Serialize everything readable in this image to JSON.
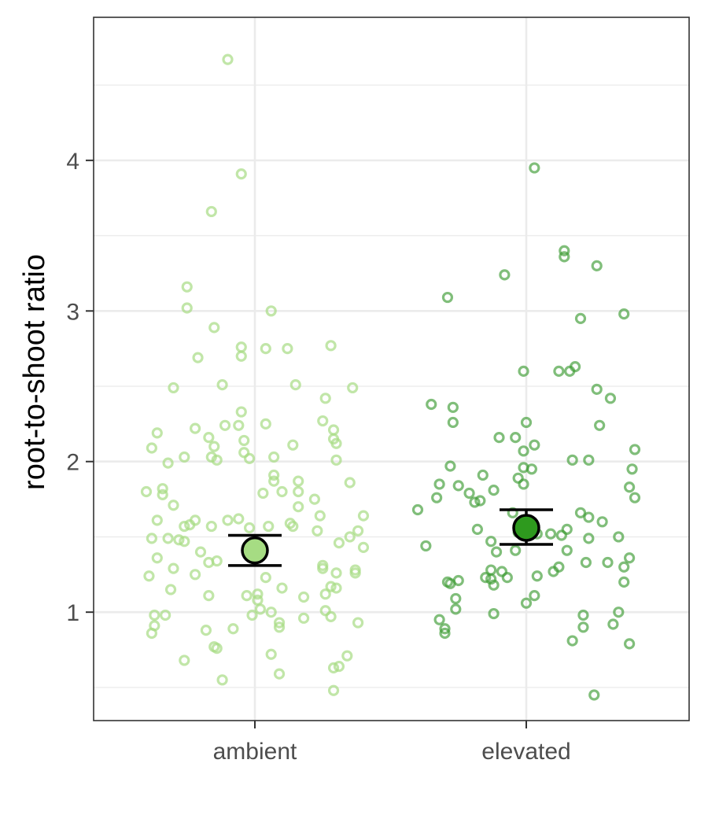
{
  "chart_data": {
    "type": "scatter",
    "title": "",
    "xlabel": "",
    "ylabel": "root-to-shoot ratio",
    "categories": [
      "ambient",
      "elevated"
    ],
    "ylim": [
      0.28,
      4.95
    ],
    "yticks": [
      1,
      2,
      3,
      4
    ],
    "grid": true,
    "legend": "none",
    "colors": {
      "ambient_points": "#a6dc83",
      "ambient_mean": "#a6dc83",
      "elevated_points": "#3c9b32",
      "elevated_mean": "#2e9a1e",
      "errorbar": "#000000",
      "grid": "#ebebeb",
      "panel_border": "#333333"
    },
    "summary": [
      {
        "category": "ambient",
        "mean": 1.41,
        "lower": 1.31,
        "upper": 1.51
      },
      {
        "category": "elevated",
        "mean": 1.56,
        "lower": 1.45,
        "upper": 1.68
      }
    ],
    "series": [
      {
        "category": "ambient",
        "points": [
          [
            -0.1,
            4.67
          ],
          [
            -0.05,
            3.91
          ],
          [
            -0.16,
            3.66
          ],
          [
            -0.25,
            3.02
          ],
          [
            -0.25,
            3.16
          ],
          [
            0.06,
            3.0
          ],
          [
            -0.15,
            2.89
          ],
          [
            -0.05,
            2.76
          ],
          [
            -0.05,
            2.7
          ],
          [
            0.04,
            2.75
          ],
          [
            0.12,
            2.75
          ],
          [
            0.28,
            2.77
          ],
          [
            -0.21,
            2.69
          ],
          [
            -0.3,
            2.49
          ],
          [
            -0.12,
            2.51
          ],
          [
            0.15,
            2.51
          ],
          [
            0.36,
            2.49
          ],
          [
            0.26,
            2.42
          ],
          [
            -0.05,
            2.33
          ],
          [
            -0.22,
            2.22
          ],
          [
            -0.17,
            2.16
          ],
          [
            -0.11,
            2.24
          ],
          [
            -0.06,
            2.24
          ],
          [
            0.04,
            2.25
          ],
          [
            0.25,
            2.27
          ],
          [
            0.29,
            2.21
          ],
          [
            -0.36,
            2.19
          ],
          [
            -0.38,
            2.09
          ],
          [
            -0.15,
            2.1
          ],
          [
            0.14,
            2.11
          ],
          [
            0.29,
            2.15
          ],
          [
            0.3,
            2.12
          ],
          [
            -0.04,
            2.14
          ],
          [
            -0.26,
            2.03
          ],
          [
            -0.32,
            1.99
          ],
          [
            -0.16,
            2.03
          ],
          [
            -0.14,
            2.01
          ],
          [
            -0.04,
            2.06
          ],
          [
            -0.02,
            2.02
          ],
          [
            0.07,
            2.03
          ],
          [
            0.3,
            2.01
          ],
          [
            -0.4,
            1.8
          ],
          [
            -0.34,
            1.82
          ],
          [
            -0.34,
            1.78
          ],
          [
            -0.3,
            1.71
          ],
          [
            0.07,
            1.91
          ],
          [
            0.07,
            1.87
          ],
          [
            0.16,
            1.87
          ],
          [
            0.35,
            1.86
          ],
          [
            0.03,
            1.79
          ],
          [
            0.1,
            1.8
          ],
          [
            0.16,
            1.8
          ],
          [
            0.22,
            1.75
          ],
          [
            0.16,
            1.7
          ],
          [
            0.4,
            1.64
          ],
          [
            0.24,
            1.64
          ],
          [
            -0.36,
            1.61
          ],
          [
            -0.22,
            1.61
          ],
          [
            -0.24,
            1.58
          ],
          [
            -0.26,
            1.57
          ],
          [
            -0.16,
            1.57
          ],
          [
            -0.1,
            1.61
          ],
          [
            -0.06,
            1.62
          ],
          [
            -0.02,
            1.56
          ],
          [
            0.05,
            1.57
          ],
          [
            0.13,
            1.59
          ],
          [
            0.14,
            1.57
          ],
          [
            0.23,
            1.54
          ],
          [
            0.38,
            1.54
          ],
          [
            0.35,
            1.5
          ],
          [
            0.31,
            1.46
          ],
          [
            0.4,
            1.43
          ],
          [
            -0.38,
            1.49
          ],
          [
            -0.32,
            1.49
          ],
          [
            -0.28,
            1.48
          ],
          [
            -0.26,
            1.47
          ],
          [
            -0.36,
            1.36
          ],
          [
            -0.2,
            1.4
          ],
          [
            -0.17,
            1.33
          ],
          [
            -0.14,
            1.34
          ],
          [
            -0.22,
            1.25
          ],
          [
            -0.3,
            1.29
          ],
          [
            -0.39,
            1.24
          ],
          [
            0.25,
            1.31
          ],
          [
            0.25,
            1.29
          ],
          [
            0.3,
            1.26
          ],
          [
            0.37,
            1.26
          ],
          [
            0.37,
            1.28
          ],
          [
            0.04,
            1.23
          ],
          [
            0.1,
            1.16
          ],
          [
            -0.31,
            1.15
          ],
          [
            -0.17,
            1.11
          ],
          [
            -0.03,
            1.11
          ],
          [
            0.01,
            1.12
          ],
          [
            0.01,
            1.08
          ],
          [
            0.02,
            1.02
          ],
          [
            0.06,
            1.0
          ],
          [
            -0.01,
            0.98
          ],
          [
            0.18,
            0.96
          ],
          [
            0.18,
            1.1
          ],
          [
            0.26,
            1.12
          ],
          [
            0.28,
            1.17
          ],
          [
            0.3,
            1.16
          ],
          [
            0.26,
            1.01
          ],
          [
            0.28,
            0.97
          ],
          [
            0.38,
            0.93
          ],
          [
            0.09,
            0.93
          ],
          [
            0.09,
            0.9
          ],
          [
            -0.37,
            0.98
          ],
          [
            -0.33,
            0.98
          ],
          [
            -0.37,
            0.91
          ],
          [
            -0.38,
            0.86
          ],
          [
            -0.18,
            0.88
          ],
          [
            -0.08,
            0.89
          ],
          [
            -0.15,
            0.77
          ],
          [
            -0.14,
            0.76
          ],
          [
            -0.26,
            0.68
          ],
          [
            0.06,
            0.72
          ],
          [
            0.09,
            0.59
          ],
          [
            -0.12,
            0.55
          ],
          [
            0.29,
            0.63
          ],
          [
            0.31,
            0.64
          ],
          [
            0.34,
            0.71
          ],
          [
            0.29,
            0.48
          ]
        ]
      },
      {
        "category": "elevated",
        "points": [
          [
            0.03,
            3.95
          ],
          [
            0.14,
            3.4
          ],
          [
            0.14,
            3.36
          ],
          [
            0.26,
            3.3
          ],
          [
            -0.08,
            3.24
          ],
          [
            -0.29,
            3.09
          ],
          [
            0.2,
            2.95
          ],
          [
            0.36,
            2.98
          ],
          [
            -0.01,
            2.6
          ],
          [
            0.12,
            2.6
          ],
          [
            0.16,
            2.6
          ],
          [
            0.18,
            2.63
          ],
          [
            0.26,
            2.48
          ],
          [
            0.31,
            2.42
          ],
          [
            -0.35,
            2.38
          ],
          [
            -0.27,
            2.36
          ],
          [
            -0.27,
            2.26
          ],
          [
            0.0,
            2.26
          ],
          [
            0.27,
            2.24
          ],
          [
            -0.1,
            2.16
          ],
          [
            -0.04,
            2.16
          ],
          [
            0.03,
            2.11
          ],
          [
            -0.01,
            2.07
          ],
          [
            0.4,
            2.08
          ],
          [
            0.17,
            2.01
          ],
          [
            0.23,
            2.01
          ],
          [
            -0.28,
            1.97
          ],
          [
            -0.01,
            1.96
          ],
          [
            0.02,
            1.95
          ],
          [
            0.39,
            1.95
          ],
          [
            -0.03,
            1.89
          ],
          [
            -0.01,
            1.85
          ],
          [
            -0.32,
            1.85
          ],
          [
            -0.25,
            1.84
          ],
          [
            -0.21,
            1.79
          ],
          [
            -0.16,
            1.91
          ],
          [
            -0.17,
            1.74
          ],
          [
            -0.19,
            1.73
          ],
          [
            -0.33,
            1.76
          ],
          [
            -0.4,
            1.68
          ],
          [
            -0.12,
            1.81
          ],
          [
            0.38,
            1.83
          ],
          [
            0.4,
            1.76
          ],
          [
            -0.18,
            1.55
          ],
          [
            -0.05,
            1.66
          ],
          [
            -0.03,
            1.53
          ],
          [
            -0.04,
            1.41
          ],
          [
            0.04,
            1.52
          ],
          [
            0.13,
            1.51
          ],
          [
            0.09,
            1.52
          ],
          [
            0.15,
            1.55
          ],
          [
            0.2,
            1.66
          ],
          [
            0.23,
            1.63
          ],
          [
            0.28,
            1.6
          ],
          [
            0.23,
            1.49
          ],
          [
            0.15,
            1.41
          ],
          [
            0.34,
            1.5
          ],
          [
            0.38,
            1.36
          ],
          [
            0.36,
            1.2
          ],
          [
            0.34,
            1.0
          ],
          [
            0.32,
            0.92
          ],
          [
            0.22,
            1.33
          ],
          [
            0.3,
            1.33
          ],
          [
            0.12,
            1.3
          ],
          [
            0.1,
            1.27
          ],
          [
            -0.13,
            1.47
          ],
          [
            -0.11,
            1.4
          ],
          [
            -0.37,
            1.44
          ],
          [
            -0.29,
            1.2
          ],
          [
            -0.28,
            1.19
          ],
          [
            -0.25,
            1.21
          ],
          [
            -0.15,
            1.23
          ],
          [
            -0.13,
            1.28
          ],
          [
            -0.13,
            1.22
          ],
          [
            -0.12,
            1.18
          ],
          [
            -0.09,
            1.27
          ],
          [
            -0.07,
            1.23
          ],
          [
            -0.26,
            1.09
          ],
          [
            -0.26,
            1.02
          ],
          [
            0.04,
            1.24
          ],
          [
            0.03,
            1.11
          ],
          [
            0.0,
            1.06
          ],
          [
            0.21,
            0.98
          ],
          [
            0.21,
            0.9
          ],
          [
            0.17,
            0.81
          ],
          [
            -0.32,
            0.95
          ],
          [
            -0.3,
            0.89
          ],
          [
            -0.3,
            0.86
          ],
          [
            -0.12,
            0.99
          ],
          [
            0.38,
            0.79
          ],
          [
            0.25,
            0.45
          ],
          [
            0.36,
            1.3
          ]
        ]
      }
    ]
  }
}
